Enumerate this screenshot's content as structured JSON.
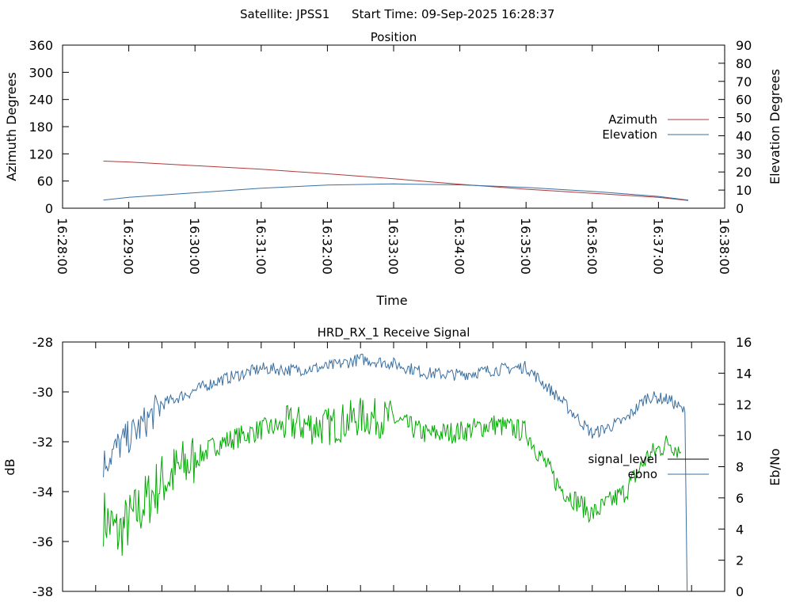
{
  "header": {
    "satellite_label": "Satellite: JPSS1",
    "start_time_label": "Start Time: 09-Sep-2025 16:28:37"
  },
  "chart_data": [
    {
      "type": "line",
      "title": "Position",
      "xlabel": "Time",
      "ylabel_left": "Azimuth Degrees",
      "ylabel_right": "Elevation Degrees",
      "x_ticks": [
        "16:28:00",
        "16:29:00",
        "16:30:00",
        "16:31:00",
        "16:32:00",
        "16:33:00",
        "16:34:00",
        "16:35:00",
        "16:36:00",
        "16:37:00",
        "16:38:00"
      ],
      "x_range_seconds": [
        0,
        600
      ],
      "ylim_left": [
        0,
        360
      ],
      "yticks_left": [
        0,
        60,
        120,
        180,
        240,
        300,
        360
      ],
      "ylim_right": [
        0,
        90
      ],
      "yticks_right": [
        0,
        10,
        20,
        30,
        40,
        50,
        60,
        70,
        80,
        90
      ],
      "legend_position": "right",
      "series": [
        {
          "name": "Azimuth",
          "axis": "left",
          "color": "#b03a3a",
          "times": [
            "16:28:37",
            "16:29:00",
            "16:30:00",
            "16:31:00",
            "16:32:00",
            "16:33:00",
            "16:34:00",
            "16:35:00",
            "16:36:00",
            "16:37:00",
            "16:37:27"
          ],
          "values": [
            104,
            102,
            94,
            86,
            76,
            65,
            53,
            42,
            33,
            24,
            17
          ]
        },
        {
          "name": "Elevation",
          "axis": "right",
          "color": "#3a6fa0",
          "times": [
            "16:28:37",
            "16:29:00",
            "16:30:00",
            "16:31:00",
            "16:32:00",
            "16:33:00",
            "16:34:00",
            "16:35:00",
            "16:36:00",
            "16:37:00",
            "16:37:27"
          ],
          "values": [
            4.5,
            6,
            8.5,
            11,
            12.8,
            13.4,
            12.9,
            11.5,
            9.3,
            6.5,
            4.5
          ]
        }
      ]
    },
    {
      "type": "line",
      "title": "HRD_RX_1 Receive Signal",
      "xlabel": "",
      "ylabel_left": "dB",
      "ylabel_right": "Eb/No",
      "x_range_seconds": [
        0,
        600
      ],
      "x_minor_tick_count": 21,
      "ylim_left": [
        -38,
        -28
      ],
      "yticks_left": [
        -38,
        -36,
        -34,
        -32,
        -30,
        -28
      ],
      "ylim_right": [
        0,
        16
      ],
      "yticks_right": [
        0,
        2,
        4,
        6,
        8,
        10,
        12,
        14,
        16
      ],
      "legend_position": "right",
      "series": [
        {
          "name": "signal_level",
          "axis": "left",
          "color": "#00aa00",
          "times": [
            "16:28:37",
            "16:28:50",
            "16:29:10",
            "16:29:30",
            "16:29:50",
            "16:30:20",
            "16:31:00",
            "16:31:30",
            "16:32:00",
            "16:32:30",
            "16:33:00",
            "16:33:30",
            "16:34:00",
            "16:34:30",
            "16:35:00",
            "16:35:30",
            "16:36:00",
            "16:36:30",
            "16:36:50",
            "16:37:10",
            "16:37:20"
          ],
          "values": [
            -35,
            -35.7,
            -34.7,
            -33.6,
            -33,
            -32.1,
            -31.5,
            -31.3,
            -31.4,
            -31,
            -31.1,
            -31.7,
            -31.6,
            -31.3,
            -31.6,
            -33.8,
            -34.9,
            -34,
            -32.6,
            -32,
            -32.4
          ]
        },
        {
          "name": "ebno",
          "axis": "right",
          "color": "#3a6fa0",
          "times": [
            "16:28:37",
            "16:28:50",
            "16:29:10",
            "16:29:30",
            "16:29:50",
            "16:30:20",
            "16:31:00",
            "16:31:30",
            "16:32:00",
            "16:32:30",
            "16:33:00",
            "16:33:30",
            "16:34:00",
            "16:34:30",
            "16:35:00",
            "16:35:30",
            "16:36:00",
            "16:36:30",
            "16:36:50",
            "16:37:10",
            "16:37:24",
            "16:37:26"
          ],
          "values": [
            8.2,
            9.3,
            10.5,
            12,
            12.6,
            13.5,
            14.3,
            14.2,
            14.4,
            14.9,
            14.6,
            14,
            13.9,
            14.2,
            14.4,
            12.4,
            10.1,
            11,
            12.5,
            12.3,
            11.5,
            0
          ]
        }
      ]
    }
  ]
}
